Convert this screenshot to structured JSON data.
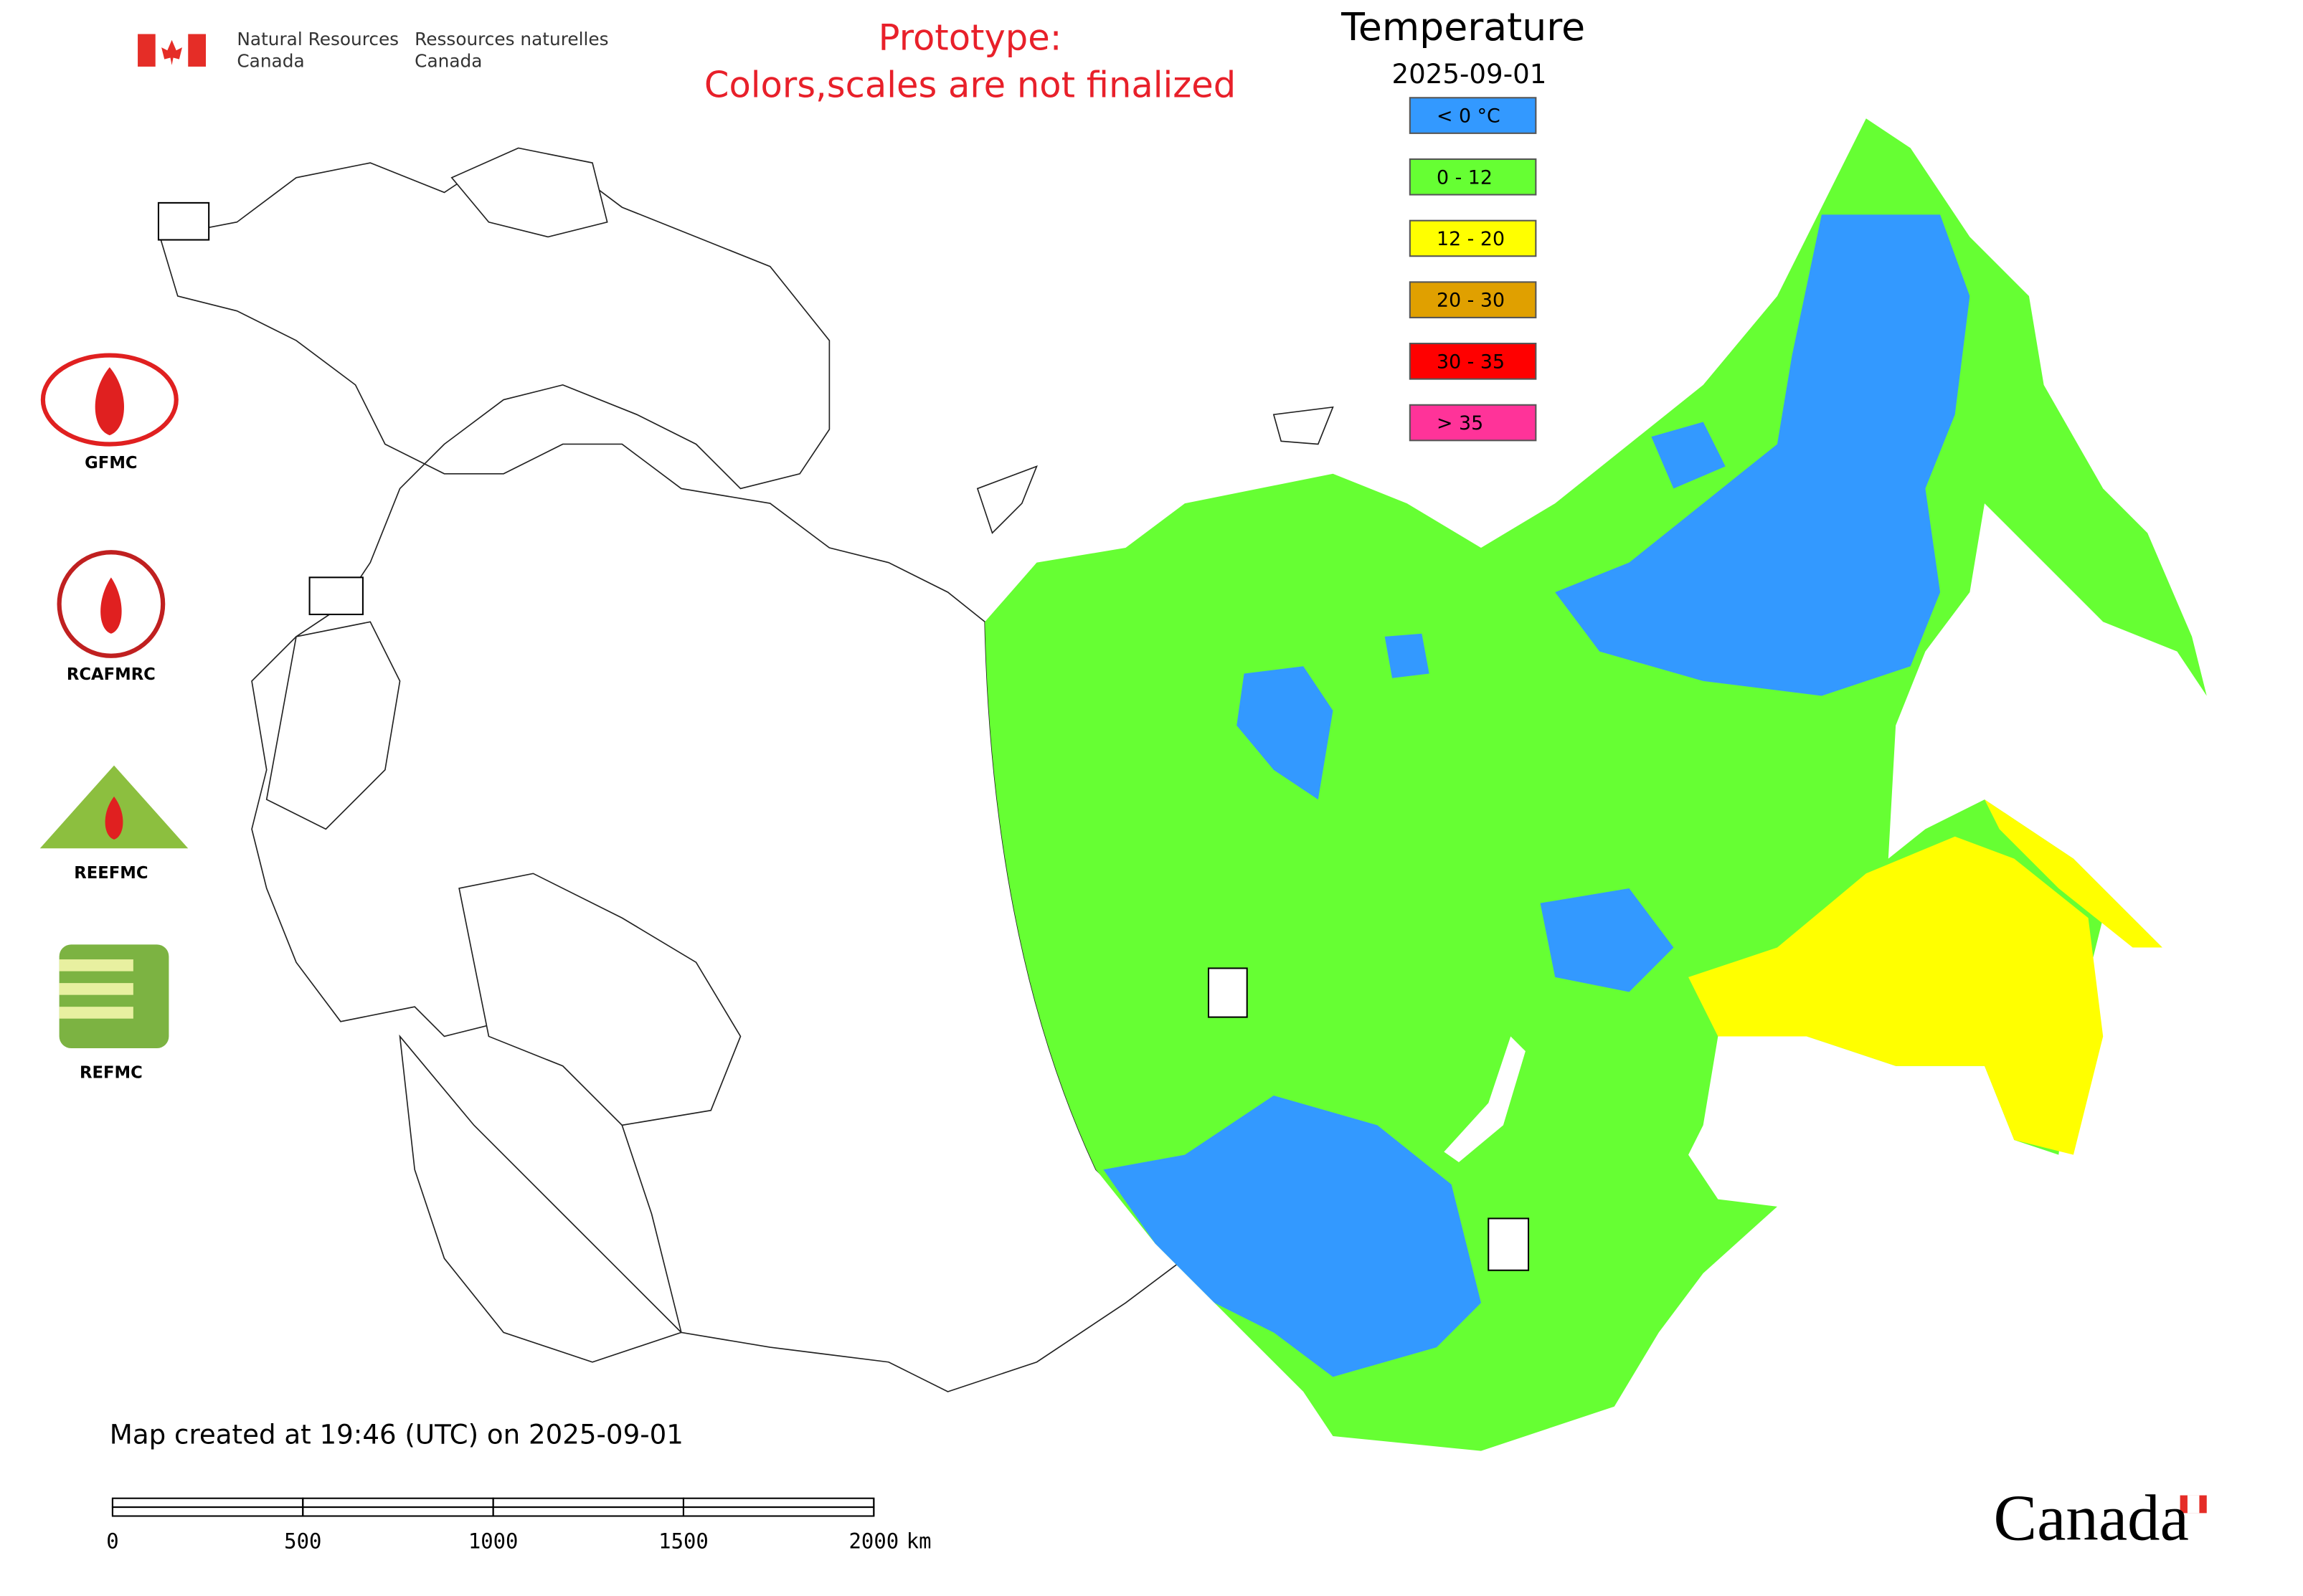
{
  "header": {
    "agency_en": [
      "Natural Resources",
      "Canada"
    ],
    "agency_fr": [
      "Ressources naturelles",
      "Canada"
    ],
    "notice": [
      "Prototype:",
      "Colors,scales are not finalized"
    ]
  },
  "legend": {
    "title": "Temperature",
    "date": "2025-09-01",
    "items": [
      {
        "label": "< 0 °C",
        "color": "#3399ff"
      },
      {
        "label": "0 - 12",
        "color": "#66ff33"
      },
      {
        "label": "12 - 20",
        "color": "#ffff00"
      },
      {
        "label": "20 - 30",
        "color": "#e0a000"
      },
      {
        "label": "30 - 35",
        "color": "#ff0000"
      },
      {
        "label": "> 35",
        "color": "#ff3399"
      }
    ]
  },
  "logos": [
    "GFMC",
    "RCAFMRC",
    "REEFMC",
    "REFMC"
  ],
  "footer": {
    "created": "Map created at 19:46 (UTC) on 2025-09-01",
    "wordmark": "Canada"
  },
  "scale_bar": {
    "ticks": [
      0,
      500,
      1000,
      1500,
      2000
    ],
    "unit": "km"
  }
}
